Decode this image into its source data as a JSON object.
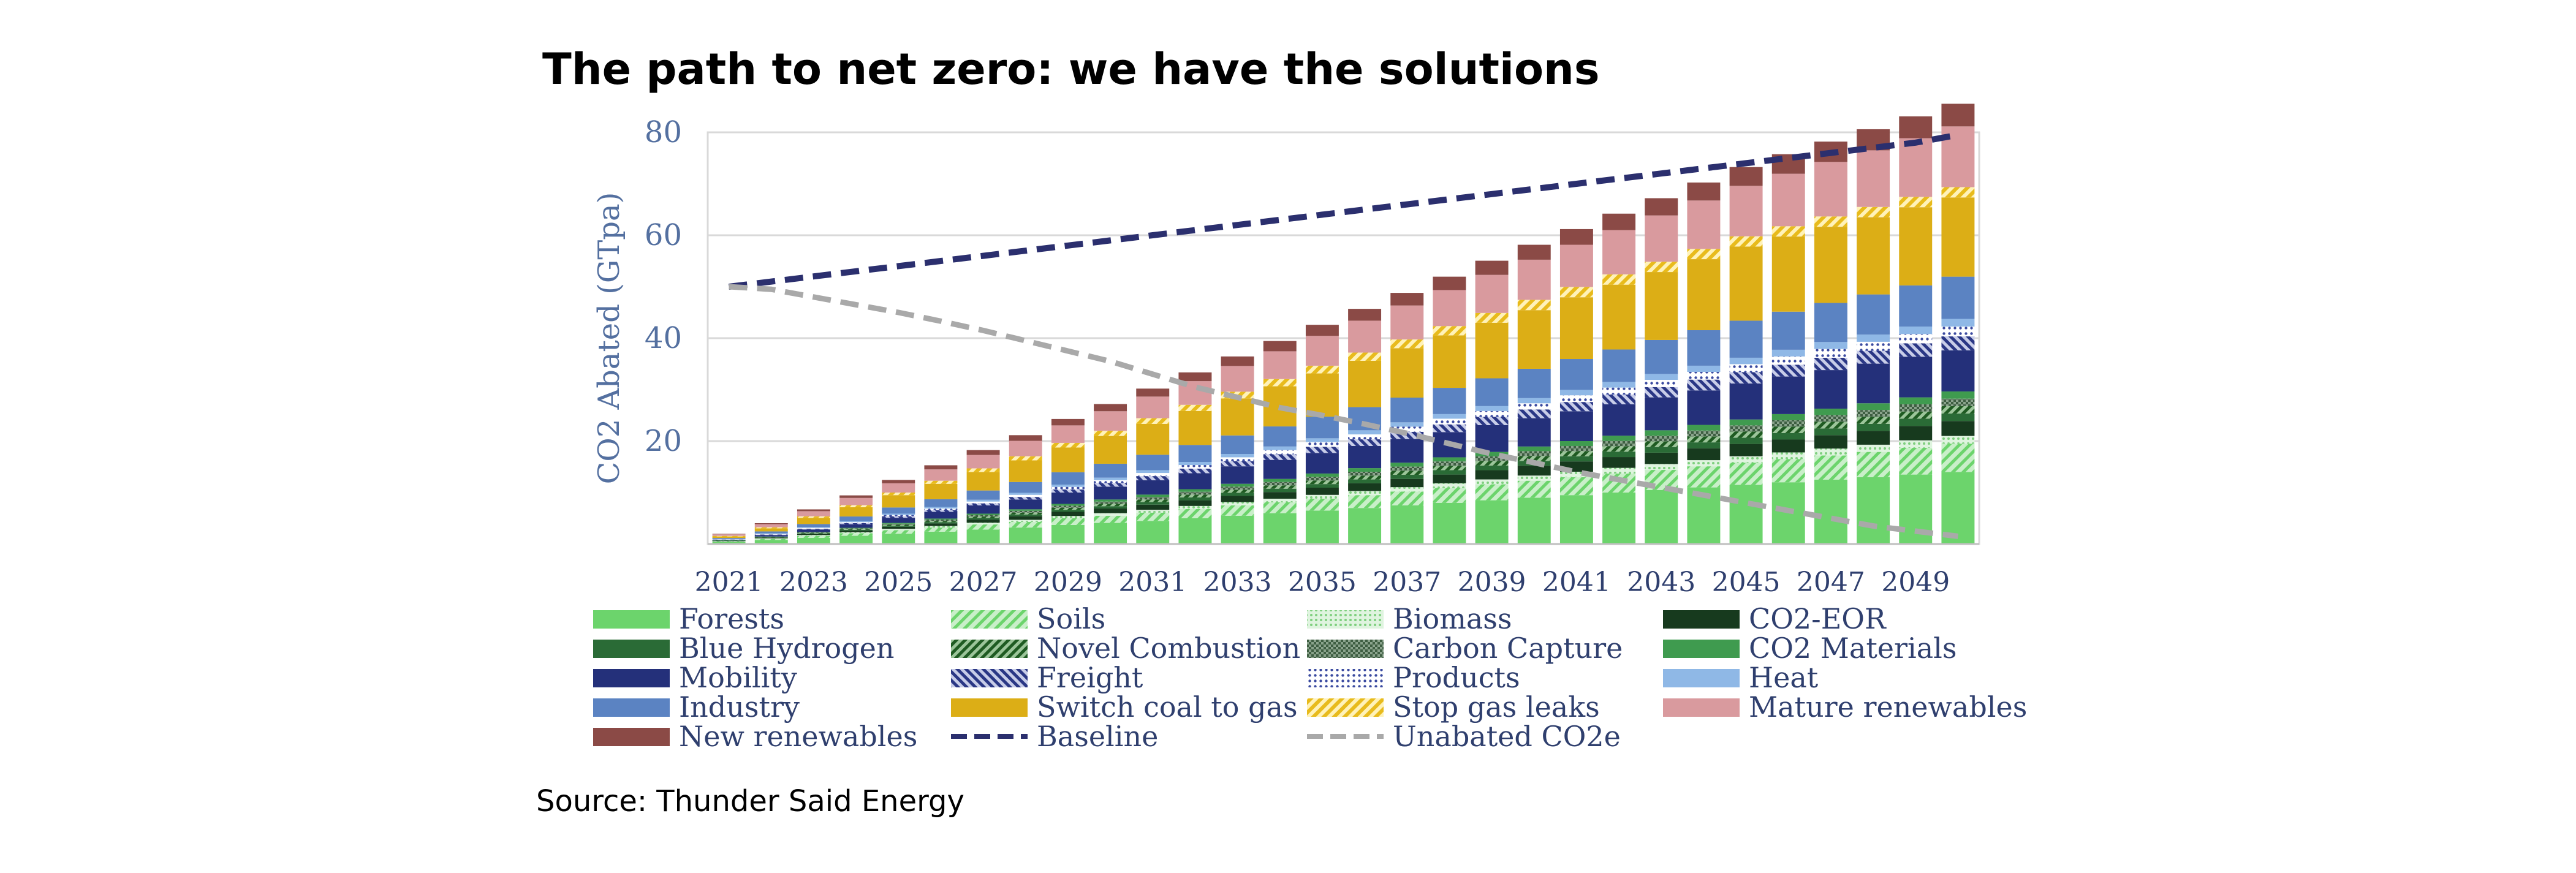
{
  "title": "The path to net zero: we have the solutions",
  "source": "Source: Thunder Said Energy",
  "colors": {
    "Forests": "#6cd46c",
    "Soils": "#a6e3a6",
    "Biomass": "#c7ecc7",
    "CO2-EOR": "#173a1e",
    "Blue Hydrogen": "#2a6b36",
    "Novel Combustion": "#2f7a33",
    "Carbon Capture": "#6f8d72",
    "CO2 Materials": "#3f9b4f",
    "Mobility": "#24307a",
    "Freight": "#3a4aa0",
    "Products": "#c6cce6",
    "Heat": "#8fb8e6",
    "Industry": "#5b83c2",
    "Switch coal to gas": "#dcae16",
    "Stop gas leaks": "#f3d153",
    "Mature renewables": "#d99a9e",
    "New renewables": "#8b4a46",
    "Baseline": "#2b2f6e",
    "Unabated CO2e": "#a9a9a9",
    "axis_text": "#5470a0",
    "grid": "#d9d9d9"
  },
  "chart_data": {
    "type": "bar",
    "stacked": true,
    "title": "The path to net zero: we have the solutions",
    "ylabel": "CO2 Abated (GTpa)",
    "xlabel": "",
    "ylim": [
      0,
      80
    ],
    "yticks": [
      20,
      40,
      60,
      80
    ],
    "ytick_labels": [
      "20",
      "40",
      "60",
      "80"
    ],
    "grid": true,
    "categories": [
      "2021",
      "2022",
      "2023",
      "2024",
      "2025",
      "2026",
      "2027",
      "2028",
      "2029",
      "2030",
      "2031",
      "2032",
      "2033",
      "2034",
      "2035",
      "2036",
      "2037",
      "2038",
      "2039",
      "2040",
      "2041",
      "2042",
      "2043",
      "2044",
      "2045",
      "2046",
      "2047",
      "2048",
      "2049",
      "2050"
    ],
    "xtick_labels": [
      "2021",
      "2023",
      "2025",
      "2027",
      "2029",
      "2031",
      "2033",
      "2035",
      "2037",
      "2039",
      "2041",
      "2043",
      "2045",
      "2047",
      "2049"
    ],
    "series": [
      {
        "name": "Forests",
        "values": [
          0.4,
          0.8,
          1.2,
          1.6,
          2.0,
          2.4,
          2.8,
          3.2,
          3.7,
          4.1,
          4.5,
          5.0,
          5.5,
          6.0,
          6.5,
          7.0,
          7.5,
          8.0,
          8.5,
          9.0,
          9.5,
          10.0,
          10.5,
          11.0,
          11.5,
          12.0,
          12.5,
          13.0,
          13.5,
          14.0
        ]
      },
      {
        "name": "Soils",
        "values": [
          0.1,
          0.2,
          0.4,
          0.5,
          0.7,
          0.8,
          1.0,
          1.1,
          1.3,
          1.4,
          1.6,
          1.8,
          2.0,
          2.1,
          2.3,
          2.5,
          2.7,
          2.9,
          3.1,
          3.3,
          3.5,
          3.7,
          3.9,
          4.1,
          4.3,
          4.5,
          4.7,
          4.9,
          5.2,
          5.5
        ]
      },
      {
        "name": "Biomass",
        "values": [
          0.05,
          0.1,
          0.15,
          0.2,
          0.25,
          0.3,
          0.35,
          0.4,
          0.45,
          0.5,
          0.55,
          0.6,
          0.65,
          0.7,
          0.75,
          0.8,
          0.85,
          0.9,
          0.95,
          1.0,
          1.05,
          1.1,
          1.15,
          1.2,
          1.25,
          1.3,
          1.35,
          1.4,
          1.45,
          1.5
        ]
      },
      {
        "name": "CO2-EOR",
        "values": [
          0.1,
          0.15,
          0.2,
          0.3,
          0.4,
          0.5,
          0.6,
          0.7,
          0.8,
          0.9,
          1.0,
          1.1,
          1.2,
          1.3,
          1.4,
          1.5,
          1.6,
          1.7,
          1.8,
          1.9,
          2.0,
          2.1,
          2.2,
          2.3,
          2.4,
          2.5,
          2.6,
          2.7,
          2.8,
          2.9
        ]
      },
      {
        "name": "Blue Hydrogen",
        "values": [
          0.02,
          0.05,
          0.1,
          0.15,
          0.2,
          0.25,
          0.3,
          0.35,
          0.4,
          0.45,
          0.5,
          0.55,
          0.6,
          0.65,
          0.7,
          0.75,
          0.8,
          0.85,
          0.9,
          0.95,
          1.0,
          1.05,
          1.1,
          1.15,
          1.2,
          1.25,
          1.3,
          1.35,
          1.4,
          1.45
        ]
      },
      {
        "name": "Novel Combustion",
        "values": [
          0.02,
          0.05,
          0.1,
          0.15,
          0.2,
          0.25,
          0.3,
          0.35,
          0.4,
          0.45,
          0.5,
          0.55,
          0.6,
          0.65,
          0.7,
          0.75,
          0.8,
          0.85,
          0.9,
          0.95,
          1.0,
          1.05,
          1.1,
          1.15,
          1.2,
          1.25,
          1.3,
          1.35,
          1.4,
          1.45
        ]
      },
      {
        "name": "Carbon Capture",
        "values": [
          0.02,
          0.05,
          0.1,
          0.15,
          0.2,
          0.25,
          0.3,
          0.35,
          0.4,
          0.45,
          0.5,
          0.55,
          0.6,
          0.65,
          0.7,
          0.75,
          0.8,
          0.85,
          0.9,
          0.95,
          1.0,
          1.05,
          1.1,
          1.15,
          1.2,
          1.25,
          1.3,
          1.35,
          1.4,
          1.45
        ]
      },
      {
        "name": "CO2 Materials",
        "values": [
          0.02,
          0.05,
          0.08,
          0.1,
          0.15,
          0.2,
          0.25,
          0.3,
          0.35,
          0.4,
          0.45,
          0.5,
          0.55,
          0.6,
          0.65,
          0.7,
          0.75,
          0.8,
          0.85,
          0.9,
          0.95,
          1.0,
          1.05,
          1.1,
          1.15,
          1.2,
          1.25,
          1.3,
          1.35,
          1.4
        ]
      },
      {
        "name": "Mobility",
        "values": [
          0.1,
          0.3,
          0.5,
          0.7,
          1.0,
          1.3,
          1.6,
          1.9,
          2.2,
          2.5,
          2.8,
          3.1,
          3.4,
          3.7,
          4.0,
          4.3,
          4.6,
          4.9,
          5.2,
          5.5,
          5.8,
          6.1,
          6.4,
          6.7,
          7.0,
          7.3,
          7.5,
          7.7,
          7.9,
          8.0
        ]
      },
      {
        "name": "Freight",
        "values": [
          0.05,
          0.1,
          0.15,
          0.2,
          0.3,
          0.35,
          0.4,
          0.5,
          0.6,
          0.7,
          0.8,
          0.9,
          1.0,
          1.1,
          1.2,
          1.3,
          1.4,
          1.5,
          1.6,
          1.7,
          1.8,
          1.9,
          2.0,
          2.1,
          2.2,
          2.3,
          2.4,
          2.5,
          2.6,
          2.7
        ]
      },
      {
        "name": "Products",
        "values": [
          0.05,
          0.1,
          0.15,
          0.2,
          0.25,
          0.3,
          0.35,
          0.4,
          0.5,
          0.55,
          0.6,
          0.7,
          0.75,
          0.8,
          0.9,
          0.95,
          1.0,
          1.1,
          1.15,
          1.2,
          1.3,
          1.35,
          1.4,
          1.5,
          1.55,
          1.6,
          1.7,
          1.75,
          1.8,
          1.9
        ]
      },
      {
        "name": "Heat",
        "values": [
          0.05,
          0.1,
          0.15,
          0.2,
          0.25,
          0.3,
          0.35,
          0.4,
          0.45,
          0.5,
          0.55,
          0.6,
          0.65,
          0.7,
          0.75,
          0.8,
          0.85,
          0.9,
          0.95,
          1.0,
          1.05,
          1.1,
          1.15,
          1.2,
          1.25,
          1.3,
          1.35,
          1.4,
          1.45,
          1.5
        ]
      },
      {
        "name": "Industry",
        "values": [
          0.2,
          0.4,
          0.6,
          0.9,
          1.2,
          1.5,
          1.8,
          2.1,
          2.4,
          2.7,
          3.0,
          3.3,
          3.6,
          3.9,
          4.2,
          4.5,
          4.8,
          5.1,
          5.4,
          5.7,
          6.0,
          6.3,
          6.6,
          6.9,
          7.2,
          7.4,
          7.6,
          7.8,
          8.0,
          8.2
        ]
      },
      {
        "name": "Switch coal to gas",
        "values": [
          0.3,
          0.6,
          1.2,
          1.8,
          2.4,
          3.0,
          3.6,
          4.2,
          4.8,
          5.4,
          6.0,
          6.6,
          7.2,
          7.8,
          8.4,
          9.0,
          9.6,
          10.2,
          10.8,
          11.4,
          12.0,
          12.6,
          13.2,
          13.8,
          14.4,
          14.6,
          14.8,
          15.0,
          15.2,
          15.4
        ]
      },
      {
        "name": "Stop gas leaks",
        "values": [
          0.1,
          0.2,
          0.3,
          0.4,
          0.5,
          0.6,
          0.7,
          0.8,
          0.9,
          1.0,
          1.1,
          1.2,
          1.3,
          1.4,
          1.5,
          1.6,
          1.7,
          1.8,
          1.9,
          2.0,
          2.0,
          2.0,
          2.0,
          2.0,
          2.0,
          2.0,
          2.0,
          2.0,
          2.0,
          2.0
        ]
      },
      {
        "name": "Mature renewables",
        "values": [
          0.3,
          0.6,
          1.0,
          1.4,
          1.8,
          2.2,
          2.6,
          3.0,
          3.4,
          3.8,
          4.2,
          4.6,
          5.0,
          5.4,
          5.8,
          6.2,
          6.6,
          7.0,
          7.4,
          7.8,
          8.2,
          8.6,
          9.0,
          9.4,
          9.8,
          10.2,
          10.6,
          11.0,
          11.4,
          11.8
        ]
      },
      {
        "name": "New renewables",
        "values": [
          0.1,
          0.2,
          0.35,
          0.5,
          0.65,
          0.8,
          0.95,
          1.1,
          1.25,
          1.4,
          1.55,
          1.7,
          1.85,
          2.0,
          2.15,
          2.3,
          2.45,
          2.6,
          2.75,
          2.9,
          3.05,
          3.2,
          3.35,
          3.5,
          3.65,
          3.8,
          3.95,
          4.1,
          4.25,
          4.4
        ]
      }
    ],
    "lines": [
      {
        "name": "Baseline",
        "style": "dashed",
        "values": [
          50.0,
          51.0,
          52.0,
          53.0,
          54.0,
          55.0,
          56.0,
          57.0,
          58.0,
          59.0,
          60.0,
          61.0,
          62.0,
          63.0,
          64.0,
          65.0,
          66.0,
          67.0,
          68.0,
          69.0,
          70.0,
          71.0,
          72.0,
          73.0,
          74.0,
          75.0,
          76.0,
          77.0,
          78.0,
          79.5
        ]
      },
      {
        "name": "Unabated CO2e",
        "style": "dashed",
        "values": [
          50.0,
          49.5,
          48.0,
          46.5,
          45.0,
          43.3,
          41.5,
          39.5,
          37.5,
          35.5,
          33.0,
          30.5,
          28.5,
          26.5,
          25.0,
          23.3,
          21.5,
          19.5,
          17.5,
          15.8,
          14.0,
          12.5,
          11.0,
          9.5,
          8.0,
          6.5,
          5.0,
          3.5,
          2.5,
          1.5
        ]
      }
    ],
    "legend": {
      "placement": "bottom",
      "entries": [
        "Forests",
        "Soils",
        "Biomass",
        "CO2-EOR",
        "Blue Hydrogen",
        "Novel Combustion",
        "Carbon Capture",
        "CO2 Materials",
        "Mobility",
        "Freight",
        "Products",
        "Heat",
        "Industry",
        "Switch coal to gas",
        "Stop gas leaks",
        "Mature renewables",
        "New renewables",
        "Baseline",
        "Unabated CO2e"
      ],
      "labels": [
        "Forests",
        "Soils",
        "Biomass",
        "CO2-EOR",
        "Blue Hydrogen",
        "Novel Combustion",
        "Carbon Capture",
        "CO2 Materials",
        "Mobility",
        "Freight",
        "Products",
        "Heat",
        "Industry",
        "Switch coal to gas",
        "Stop gas leaks",
        "Mature renewables",
        "New renewables",
        "Baseline",
        "Unabated CO2e"
      ]
    }
  }
}
